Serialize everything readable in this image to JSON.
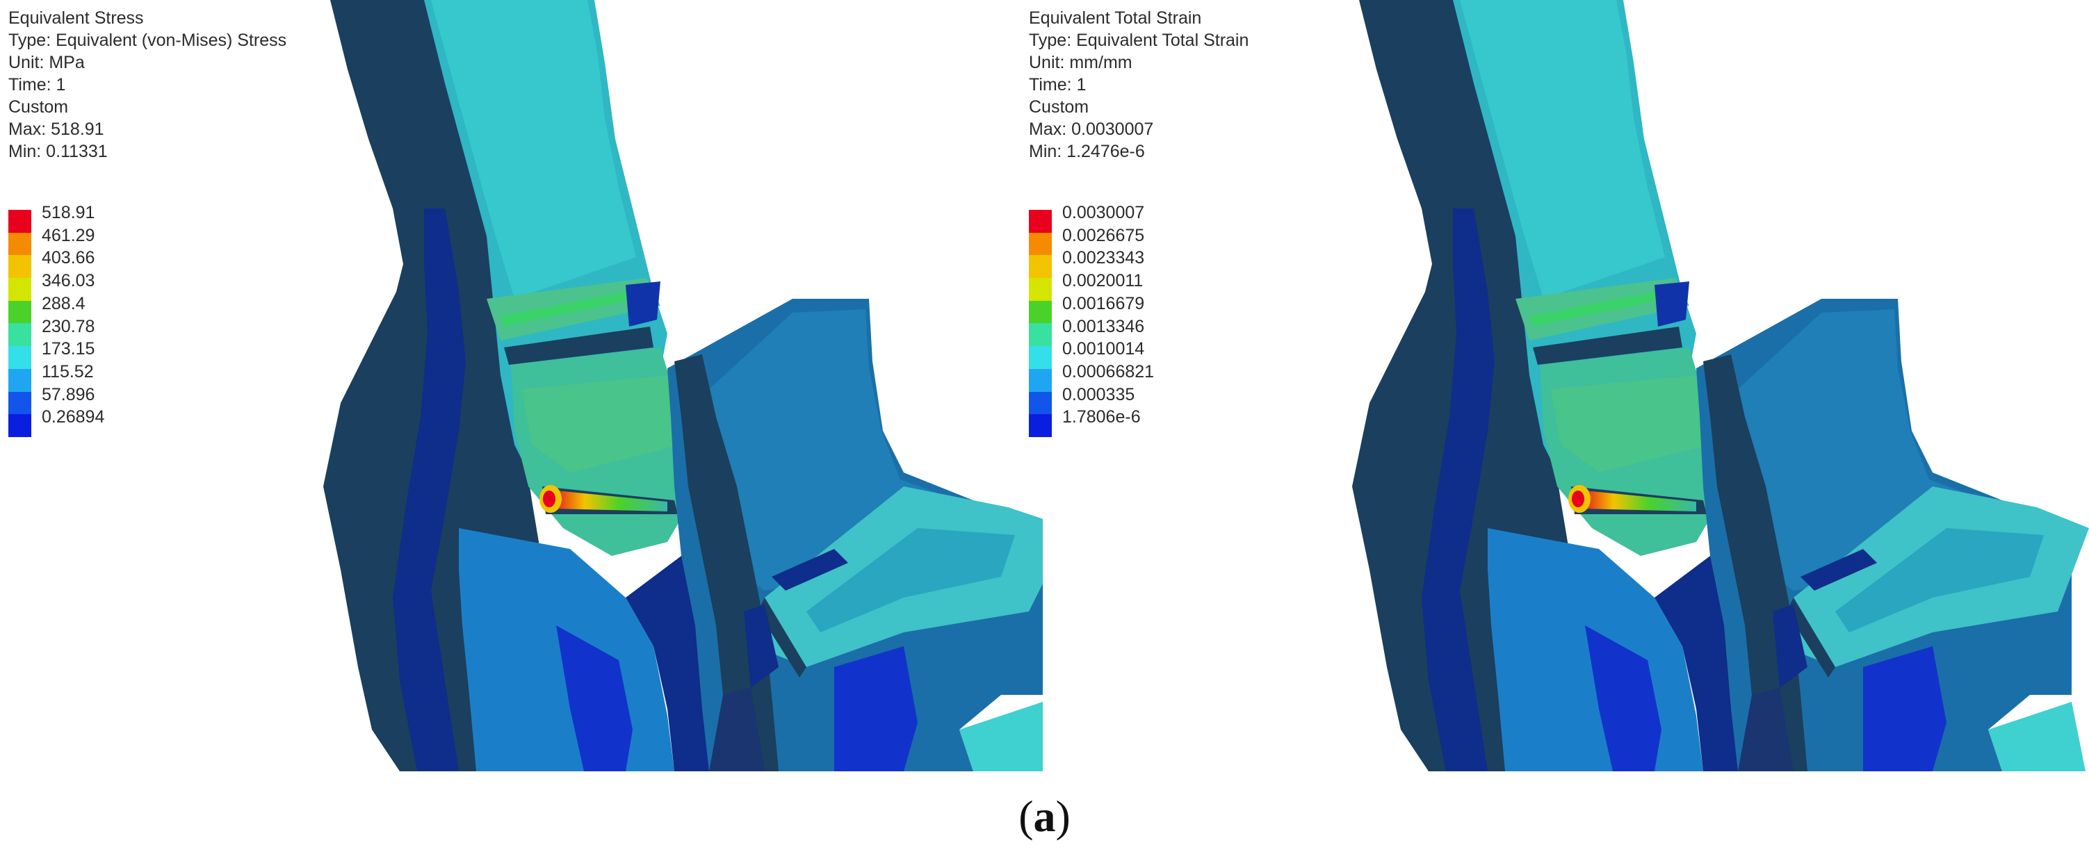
{
  "panels": [
    {
      "info": [
        "Equivalent Stress",
        "Type: Equivalent (von-Mises) Stress",
        "Unit: MPa",
        "Time: 1",
        "Custom",
        "Max: 518.91",
        "Min: 0.11331"
      ],
      "legend": [
        "518.91",
        "461.29",
        "403.66",
        "346.03",
        "288.4",
        "230.78",
        "173.15",
        "115.52",
        "57.896",
        "0.26894"
      ]
    },
    {
      "info": [
        "Equivalent Total Strain",
        "Type: Equivalent Total Strain",
        "Unit: mm/mm",
        "Time: 1",
        "Custom",
        "Max: 0.0030007",
        "Min: 1.2476e-6"
      ],
      "legend": [
        "0.0030007",
        "0.0026675",
        "0.0023343",
        "0.0020011",
        "0.0016679",
        "0.0013346",
        "0.0010014",
        "0.00066821",
        "0.000335",
        "1.7806e-6"
      ]
    }
  ],
  "legend_colors": [
    "#e8001c",
    "#f58b00",
    "#f2c400",
    "#d4e600",
    "#4bd22a",
    "#38e1a0",
    "#33dfe8",
    "#20a6f0",
    "#1155ea",
    "#0a1ee0"
  ],
  "caption": {
    "open": "(",
    "letter": "a",
    "close": ")"
  }
}
